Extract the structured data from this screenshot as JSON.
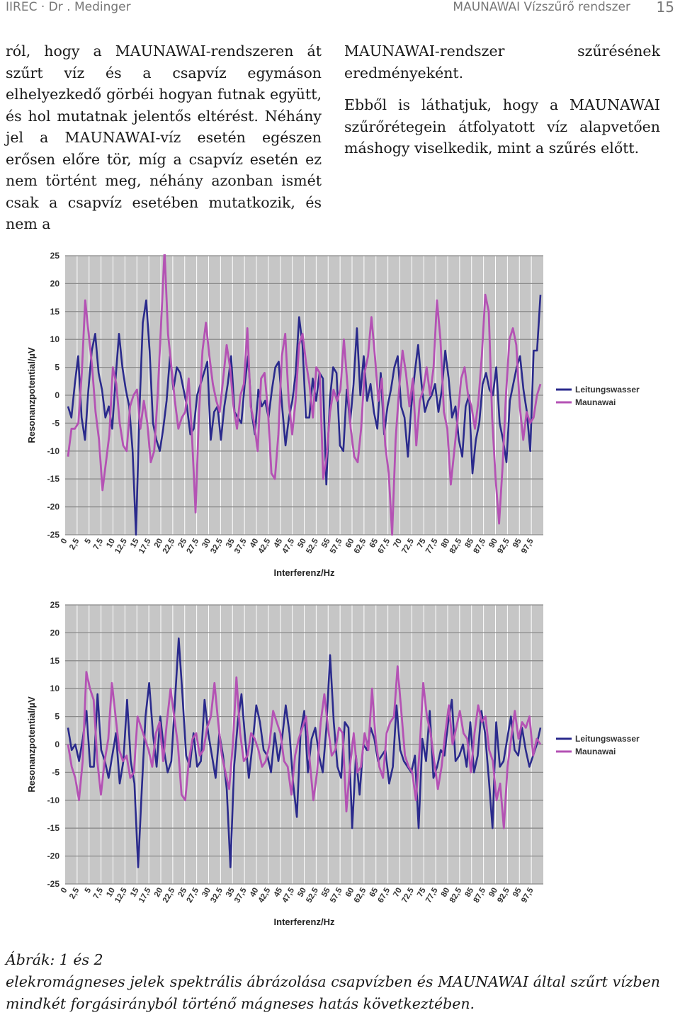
{
  "header": {
    "left": "IIREC · Dr . Medinger",
    "right": "MAUNAWAI Vízszűrő rendszer",
    "page_number": "15"
  },
  "body": {
    "left_column": "ról, hogy a MAUNAWAI-rendszeren át szűrt víz és a csapvíz egymáson elhelyezkedő görbéi hogyan futnak együtt, és hol mutatnak jelentős eltérést. Néhány jel a MAUNAWAI-víz esetén egészen erősen előre tör, míg a csapvíz esetén ez nem történt meg, néhány azonban ismét csak a csapvíz esetében mutatkozik, és nem a",
    "right_para1": "MAUNAWAI-rendszer szűrésének eredményeként.",
    "right_para2": "Ebből is láthatjuk, hogy a MAUNAWAI szűrőrétegein átfolyatott víz alapvetően máshogy viselkedik, mint a szűrés előtt."
  },
  "chart_data": [
    {
      "type": "line",
      "xlabel": "Interferenz/Hz",
      "ylabel": "Resonanzpotential/µV",
      "ylim": [
        -25,
        25
      ],
      "yticks": [
        "25",
        "20",
        "15",
        "10",
        "5",
        "0",
        "-5",
        "-10",
        "-15",
        "-20",
        "-25"
      ],
      "xticks": [
        "0",
        "2,5",
        "5",
        "7,5",
        "10",
        "12,5",
        "15",
        "17,5",
        "20",
        "22,5",
        "25",
        "27,5",
        "30",
        "32,5",
        "35",
        "37,5",
        "40",
        "42,5",
        "45",
        "47,5",
        "50",
        "52,5",
        "55",
        "57,5",
        "60",
        "62,5",
        "65",
        "67,5",
        "70",
        "72,5",
        "75",
        "77,5",
        "80",
        "82,5",
        "85",
        "87,5",
        "90",
        "92,5",
        "95",
        "97,5"
      ],
      "grid": true,
      "legend": "right",
      "series": [
        {
          "name": "Leitungswasser",
          "color": "#2a2a8c",
          "values": [
            -2,
            -4,
            2,
            7,
            -4,
            -8,
            1,
            8,
            11,
            4,
            1,
            -4,
            -2,
            -6,
            3,
            11,
            5,
            1,
            -2,
            -10,
            -25,
            -3,
            13,
            17,
            8,
            -5,
            -8,
            -10,
            -6,
            -1,
            7,
            1,
            5,
            4,
            1,
            -2,
            -7,
            -6,
            0,
            2,
            4,
            6,
            -8,
            -3,
            -2,
            -8,
            -2,
            2,
            7,
            -3,
            -4,
            -5,
            2,
            7,
            -3,
            -7,
            1,
            -2,
            -1,
            -4,
            1,
            5,
            6,
            -2,
            -9,
            -4,
            -1,
            4,
            14,
            9,
            -4,
            -4,
            3,
            -1,
            4,
            3,
            -16,
            -1,
            5,
            4,
            -9,
            -10,
            1,
            -5,
            2,
            12,
            0,
            7,
            -1,
            2,
            -3,
            -6,
            4,
            -7,
            -2,
            1,
            5,
            7,
            -2,
            -4,
            -11,
            -2,
            4,
            9,
            2,
            -3,
            -1,
            0,
            2,
            -3,
            1,
            8,
            3,
            -4,
            -2,
            -8,
            -11,
            -2,
            0,
            -14,
            -8,
            -5,
            2,
            4,
            1,
            0,
            5,
            -5,
            -8,
            -12,
            -1,
            2,
            5,
            7,
            1,
            -3,
            -10,
            8,
            8,
            18
          ]
        },
        {
          "name": "Maunawai",
          "color": "#b452b4",
          "values": [
            -11,
            -6,
            -6,
            -5,
            4,
            17,
            11,
            5,
            -3,
            -8,
            -17,
            -12,
            -7,
            5,
            2,
            -5,
            -9,
            -10,
            -2,
            0,
            1,
            -6,
            -1,
            -5,
            -12,
            -10,
            0,
            13,
            26,
            11,
            5,
            -1,
            -6,
            -4,
            -3,
            3,
            -8,
            -21,
            -3,
            8,
            13,
            7,
            2,
            -1,
            -3,
            3,
            9,
            5,
            -2,
            -6,
            0,
            2,
            12,
            -2,
            -5,
            -10,
            3,
            4,
            -3,
            -14,
            -15,
            -7,
            7,
            11,
            -1,
            -7,
            -1,
            9,
            11,
            6,
            2,
            -4,
            5,
            4,
            -15,
            -11,
            -3,
            1,
            -1,
            1,
            10,
            2,
            -6,
            -11,
            -12,
            -6,
            4,
            7,
            14,
            7,
            -1,
            3,
            -9,
            -14,
            -25,
            -8,
            1,
            8,
            4,
            -2,
            3,
            -9,
            -1,
            1,
            5,
            0,
            5,
            17,
            10,
            -3,
            -6,
            -16,
            -10,
            -4,
            3,
            5,
            0,
            -2,
            -6,
            -1,
            7,
            18,
            15,
            -4,
            -15,
            -23,
            -13,
            0,
            10,
            12,
            9,
            -2,
            -8,
            -3,
            -5,
            -4,
            0,
            2
          ]
        }
      ]
    },
    {
      "type": "line",
      "xlabel": "Interferenz/Hz",
      "ylabel": "Resonanzpotential/µV",
      "ylim": [
        -25,
        25
      ],
      "yticks": [
        "25",
        "20",
        "15",
        "10",
        "5",
        "0",
        "-5",
        "-10",
        "-15",
        "-20",
        "-25"
      ],
      "xticks": [
        "0",
        "2,5",
        "5",
        "7,5",
        "10",
        "12,5",
        "15",
        "17,5",
        "20",
        "22,5",
        "25",
        "27,5",
        "30",
        "32,5",
        "35",
        "37,5",
        "40",
        "42,5",
        "45",
        "47,5",
        "50",
        "52,5",
        "55",
        "57,5",
        "60",
        "62,5",
        "65",
        "67,5",
        "70",
        "72,5",
        "75",
        "77,5",
        "80",
        "82,5",
        "85",
        "87,5",
        "90",
        "92,5",
        "95",
        "97,5"
      ],
      "grid": true,
      "legend": "right",
      "series": [
        {
          "name": "Leitungswasser",
          "color": "#2a2a8c",
          "values": [
            3,
            -1,
            0,
            -3,
            1,
            6,
            -4,
            -4,
            9,
            -1,
            -3,
            -6,
            -2,
            2,
            -7,
            -3,
            8,
            -3,
            -7,
            -22,
            -8,
            5,
            11,
            2,
            -4,
            5,
            -1,
            -5,
            -3,
            8,
            19,
            9,
            -2,
            -4,
            2,
            -4,
            -3,
            8,
            2,
            -2,
            -6,
            2,
            -2,
            -8,
            -22,
            -4,
            4,
            9,
            1,
            -6,
            0,
            7,
            4,
            -1,
            -2,
            -5,
            2,
            -3,
            1,
            7,
            2,
            -7,
            -13,
            2,
            6,
            -5,
            1,
            3,
            -2,
            -5,
            3,
            16,
            4,
            -4,
            -6,
            4,
            3,
            -15,
            -2,
            -9,
            0,
            -1,
            3,
            1,
            -3,
            -2,
            -1,
            -7,
            -4,
            7,
            -1,
            -3,
            -4,
            -5,
            -2,
            -15,
            1,
            -3,
            6,
            -6,
            -4,
            -1,
            -2,
            4,
            8,
            -3,
            -2,
            0,
            -4,
            4,
            -5,
            -2,
            6,
            2,
            -6,
            -15,
            4,
            -4,
            -3,
            1,
            5,
            -1,
            -2,
            3,
            -1,
            -4,
            -2,
            0,
            3
          ]
        },
        {
          "name": "Maunawai",
          "color": "#b452b4",
          "values": [
            0,
            -4,
            -6,
            -10,
            -3,
            13,
            10,
            8,
            -3,
            -9,
            -3,
            1,
            11,
            5,
            -1,
            -3,
            -2,
            -6,
            -5,
            5,
            3,
            1,
            -1,
            -4,
            2,
            4,
            -3,
            4,
            10,
            5,
            0,
            -9,
            -10,
            -3,
            1,
            2,
            -2,
            -1,
            3,
            5,
            11,
            4,
            -2,
            -5,
            -8,
            0,
            12,
            2,
            -3,
            -2,
            2,
            1,
            -1,
            -4,
            -3,
            0,
            6,
            4,
            2,
            -3,
            -4,
            -9,
            -2,
            1,
            3,
            5,
            -3,
            -10,
            -5,
            4,
            9,
            3,
            -2,
            -1,
            3,
            2,
            -12,
            -4,
            2,
            -5,
            -4,
            2,
            -1,
            10,
            1,
            -4,
            -6,
            2,
            4,
            5,
            14,
            6,
            -2,
            -4,
            -5,
            -10,
            -1,
            11,
            5,
            2,
            -3,
            -8,
            -4,
            2,
            7,
            0,
            3,
            6,
            2,
            1,
            -5,
            2,
            7,
            4,
            5,
            -1,
            -3,
            -10,
            -7,
            -15,
            -4,
            1,
            6,
            1,
            4,
            3,
            5,
            -2,
            1,
            0
          ]
        }
      ]
    }
  ],
  "caption": {
    "title": "Ábrák: 1 és 2",
    "text": "elekromágneses jelek spektrális ábrázolása csapvízben és MAUNAWAI által szűrt vízben mindkét forgásirányból történő mágneses hatás következtében."
  }
}
